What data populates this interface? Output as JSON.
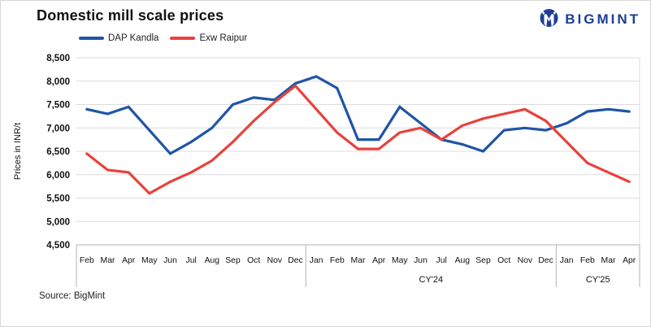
{
  "header": {
    "title": "Domestic mill scale prices",
    "brand": "BIGMINT"
  },
  "legend": [
    {
      "label": "DAP Kandla",
      "color": "#1f55a5"
    },
    {
      "label": "Exw Raipur",
      "color": "#e8423c"
    }
  ],
  "source": "Source: BigMint",
  "colors": {
    "brand_navy": "#1c3e94",
    "gridline": "#dcdcdc",
    "axis": "#b3b3b3"
  },
  "chart_data": {
    "type": "line",
    "title": "Domestic mill scale prices",
    "ylabel": "Prices in INR/t",
    "ylim": [
      4500,
      8500
    ],
    "ytick_step": 500,
    "grid": true,
    "legend_position": "top-left",
    "categories": [
      "Feb",
      "Mar",
      "Apr",
      "May",
      "Jun",
      "Jul",
      "Aug",
      "Sep",
      "Oct",
      "Nov",
      "Dec",
      "Jan",
      "Feb",
      "Mar",
      "Apr",
      "May",
      "Jun",
      "Jul",
      "Aug",
      "Sep",
      "Oct",
      "Nov",
      "Dec",
      "Jan",
      "Feb",
      "Mar",
      "Apr"
    ],
    "year_groups": [
      {
        "label": "",
        "months": 11
      },
      {
        "label": "CY'24",
        "months": 12
      },
      {
        "label": "CY'25",
        "months": 4
      }
    ],
    "series": [
      {
        "name": "DAP Kandla",
        "color": "#1f55a5",
        "values": [
          7400,
          7300,
          7450,
          6950,
          6450,
          6700,
          7000,
          7500,
          7650,
          7600,
          7950,
          8100,
          7850,
          6750,
          6750,
          7450,
          7100,
          6750,
          6650,
          6500,
          6950,
          7000,
          6950,
          7100,
          7350,
          7400,
          7350
        ]
      },
      {
        "name": "Exw Raipur",
        "color": "#e8423c",
        "values": [
          6450,
          6100,
          6050,
          5600,
          5850,
          6050,
          6300,
          6700,
          7150,
          7550,
          7900,
          7400,
          6900,
          6550,
          6550,
          6900,
          7000,
          6750,
          7050,
          7200,
          7300,
          7400,
          7150,
          6700,
          6250,
          6050,
          5850
        ]
      }
    ]
  }
}
